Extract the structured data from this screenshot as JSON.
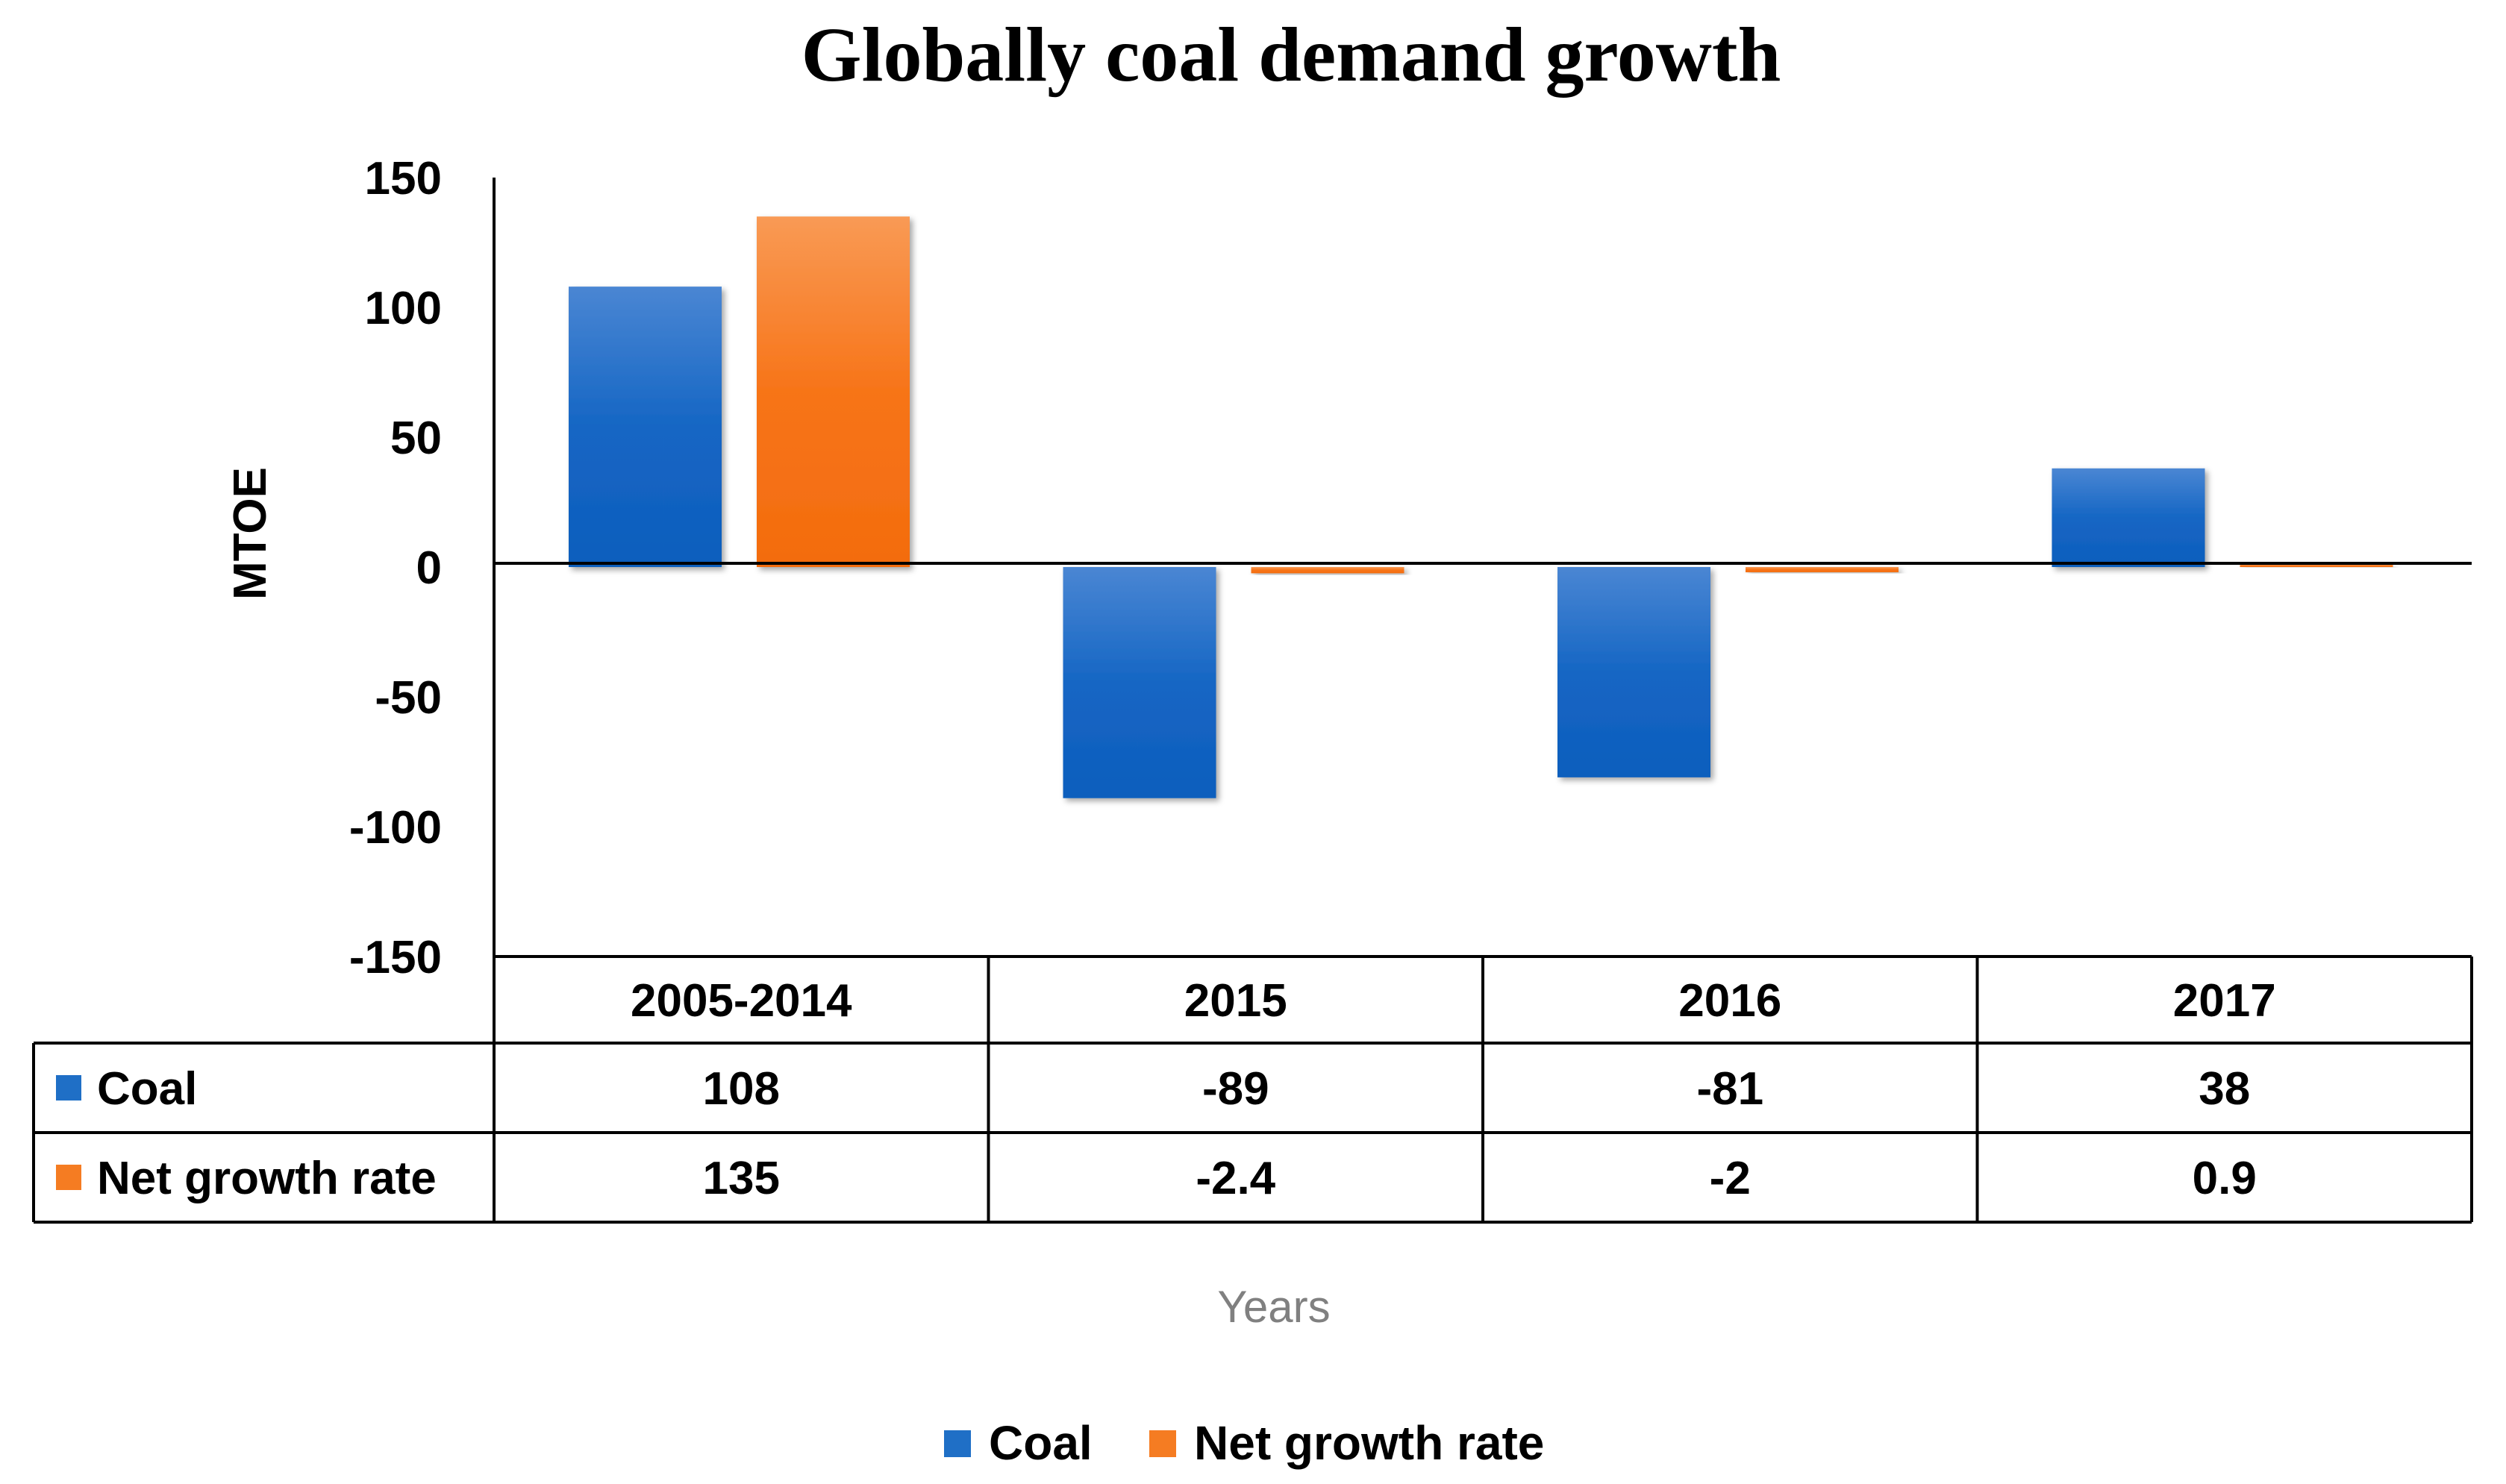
{
  "chart_data": {
    "type": "bar",
    "title": "Globally coal demand growth",
    "xlabel": "Years",
    "ylabel": "MTOE",
    "ylim": [
      -150,
      150
    ],
    "yticks": [
      "150",
      "100",
      "50",
      "0",
      "-50",
      "-100",
      "-150"
    ],
    "categories": [
      "2005-2014",
      "2015",
      "2016",
      "2017"
    ],
    "series": [
      {
        "name": "Coal",
        "color": "#1F6FC6",
        "values": [
          108,
          -89,
          -81,
          38
        ],
        "value_labels": [
          "108",
          "-89",
          "-81",
          "38"
        ]
      },
      {
        "name": "Net growth rate",
        "color": "#F57C22",
        "values": [
          135,
          -2.4,
          -2,
          0.9
        ],
        "value_labels": [
          "135",
          "-2.4",
          "-2",
          "0.9"
        ]
      }
    ],
    "legend": [
      "Coal",
      "Net growth rate"
    ],
    "legend_position": "bottom",
    "data_table": true,
    "grid": false
  }
}
